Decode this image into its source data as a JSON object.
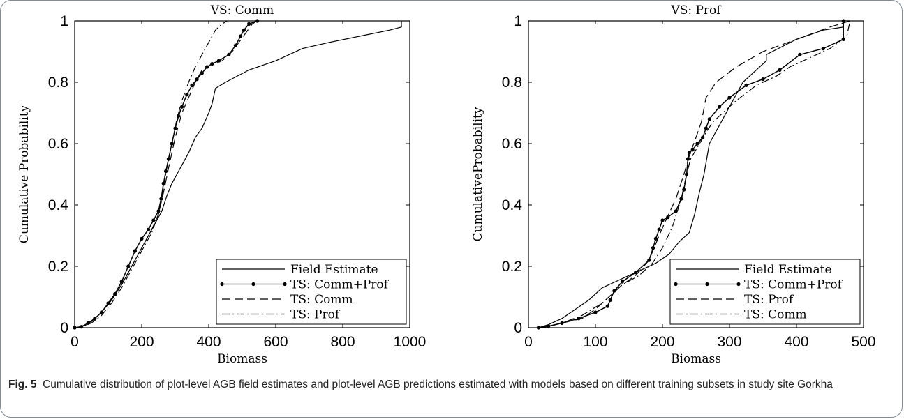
{
  "caption": {
    "label": "Fig. 5",
    "text": "Cumulative distribution of plot-level AGB field estimates and plot-level AGB predictions estimated with models based on different training subsets in study site Gorkha"
  },
  "chart_data": [
    {
      "type": "line",
      "title": "VS: Comm",
      "xlabel": "Biomass",
      "ylabel": "Cumulative Probability",
      "xlim": [
        0,
        1000
      ],
      "ylim": [
        0,
        1
      ],
      "xticks": [
        "0",
        "200",
        "400",
        "600",
        "800",
        "1000"
      ],
      "yticks": [
        "0",
        "0.2",
        "0.4",
        "0.6",
        "0.8",
        "1"
      ],
      "legend_position": "bottom-right",
      "series": [
        {
          "name": "Field Estimate",
          "style": "solid",
          "x": [
            0,
            20,
            50,
            80,
            110,
            140,
            170,
            200,
            230,
            260,
            275,
            290,
            305,
            320,
            340,
            360,
            380,
            400,
            410,
            420,
            450,
            520,
            600,
            680,
            760,
            850,
            940,
            975,
            975
          ],
          "y": [
            0,
            0.003,
            0.02,
            0.05,
            0.09,
            0.14,
            0.2,
            0.26,
            0.32,
            0.38,
            0.43,
            0.47,
            0.5,
            0.53,
            0.57,
            0.62,
            0.65,
            0.7,
            0.73,
            0.78,
            0.8,
            0.84,
            0.87,
            0.91,
            0.93,
            0.95,
            0.97,
            0.98,
            1.0
          ]
        },
        {
          "name": "TS: Comm+Prof",
          "style": "solid-dots",
          "x": [
            0,
            20,
            40,
            60,
            80,
            100,
            120,
            140,
            160,
            180,
            200,
            220,
            235,
            250,
            258,
            265,
            272,
            280,
            290,
            300,
            310,
            320,
            335,
            350,
            365,
            380,
            395,
            410,
            430,
            460,
            480,
            495,
            505,
            520,
            545
          ],
          "y": [
            0,
            0.003,
            0.015,
            0.03,
            0.05,
            0.08,
            0.11,
            0.15,
            0.2,
            0.25,
            0.29,
            0.32,
            0.35,
            0.38,
            0.42,
            0.47,
            0.51,
            0.55,
            0.6,
            0.65,
            0.69,
            0.72,
            0.76,
            0.79,
            0.81,
            0.83,
            0.85,
            0.86,
            0.87,
            0.89,
            0.92,
            0.95,
            0.97,
            0.99,
            1.0
          ]
        },
        {
          "name": "TS: Comm",
          "style": "dashed",
          "x": [
            0,
            20,
            50,
            80,
            110,
            140,
            170,
            200,
            230,
            250,
            265,
            280,
            300,
            320,
            340,
            360,
            380,
            410,
            440,
            470,
            490,
            510,
            530,
            545
          ],
          "y": [
            0,
            0.004,
            0.02,
            0.05,
            0.09,
            0.14,
            0.2,
            0.26,
            0.32,
            0.37,
            0.44,
            0.52,
            0.62,
            0.7,
            0.75,
            0.8,
            0.84,
            0.86,
            0.87,
            0.9,
            0.93,
            0.96,
            0.99,
            1.0
          ]
        },
        {
          "name": "TS: Prof",
          "style": "dash-dot",
          "x": [
            0,
            20,
            50,
            80,
            110,
            140,
            170,
            200,
            230,
            250,
            262,
            275,
            290,
            305,
            320,
            340,
            360,
            380,
            400,
            420,
            440,
            455
          ],
          "y": [
            0,
            0.003,
            0.015,
            0.04,
            0.08,
            0.13,
            0.19,
            0.25,
            0.31,
            0.37,
            0.44,
            0.52,
            0.6,
            0.68,
            0.74,
            0.8,
            0.85,
            0.89,
            0.93,
            0.97,
            0.99,
            1.0
          ]
        }
      ]
    },
    {
      "type": "line",
      "title": "VS: Prof",
      "xlabel": "Biomass",
      "ylabel": "CumulativeProbability",
      "xlim": [
        0,
        500
      ],
      "ylim": [
        0,
        1
      ],
      "xticks": [
        "0",
        "100",
        "200",
        "300",
        "400",
        "500"
      ],
      "yticks": [
        "0",
        "0.2",
        "0.4",
        "0.6",
        "0.8",
        "1"
      ],
      "legend_position": "bottom-right",
      "series": [
        {
          "name": "Field Estimate",
          "style": "solid",
          "x": [
            15,
            30,
            50,
            70,
            90,
            110,
            130,
            150,
            170,
            190,
            210,
            225,
            240,
            248,
            255,
            262,
            270,
            290,
            320,
            355,
            355,
            400,
            440,
            470,
            470,
            480
          ],
          "y": [
            0,
            0.01,
            0.03,
            0.06,
            0.09,
            0.13,
            0.15,
            0.17,
            0.19,
            0.21,
            0.24,
            0.28,
            0.31,
            0.37,
            0.44,
            0.5,
            0.6,
            0.68,
            0.8,
            0.87,
            0.89,
            0.94,
            0.97,
            0.98,
            1.0,
            1.0
          ]
        },
        {
          "name": "TS: Comm+Prof",
          "style": "solid-dots",
          "x": [
            15,
            30,
            50,
            75,
            100,
            118,
            122,
            128,
            140,
            160,
            180,
            186,
            190,
            195,
            200,
            208,
            220,
            228,
            232,
            236,
            238,
            240,
            245,
            252,
            260,
            265,
            270,
            285,
            300,
            325,
            350,
            375,
            405,
            440,
            470,
            470
          ],
          "y": [
            0,
            0.005,
            0.015,
            0.03,
            0.05,
            0.07,
            0.09,
            0.12,
            0.15,
            0.18,
            0.22,
            0.26,
            0.29,
            0.32,
            0.35,
            0.36,
            0.38,
            0.42,
            0.45,
            0.5,
            0.55,
            0.57,
            0.58,
            0.6,
            0.62,
            0.65,
            0.68,
            0.72,
            0.75,
            0.79,
            0.81,
            0.84,
            0.89,
            0.91,
            0.94,
            1.0
          ]
        },
        {
          "name": "TS: Prof",
          "style": "dashed",
          "x": [
            15,
            30,
            50,
            80,
            100,
            120,
            140,
            160,
            180,
            195,
            205,
            220,
            232,
            240,
            250,
            258,
            265,
            280,
            310,
            350,
            400,
            450,
            480
          ],
          "y": [
            0,
            0.004,
            0.015,
            0.03,
            0.06,
            0.1,
            0.14,
            0.17,
            0.22,
            0.3,
            0.35,
            0.42,
            0.5,
            0.56,
            0.62,
            0.67,
            0.75,
            0.8,
            0.85,
            0.9,
            0.94,
            0.98,
            1.0
          ]
        },
        {
          "name": "TS: Comm",
          "style": "dash-dot",
          "x": [
            15,
            30,
            50,
            80,
            110,
            125,
            140,
            165,
            185,
            200,
            215,
            228,
            236,
            242,
            250,
            258,
            266,
            275,
            290,
            310,
            340,
            370,
            390,
            420,
            450,
            475,
            480
          ],
          "y": [
            0,
            0.004,
            0.015,
            0.04,
            0.08,
            0.11,
            0.14,
            0.17,
            0.21,
            0.26,
            0.33,
            0.42,
            0.5,
            0.55,
            0.58,
            0.61,
            0.64,
            0.67,
            0.7,
            0.74,
            0.79,
            0.82,
            0.85,
            0.88,
            0.91,
            0.95,
            1.0
          ]
        }
      ]
    }
  ]
}
